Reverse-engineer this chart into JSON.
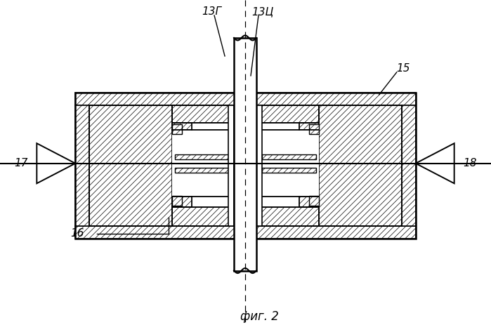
{
  "caption": "фиг. 2",
  "label_13G": "13Г",
  "label_13C": "13Ц",
  "label_15": "15",
  "label_16": "16",
  "label_17": "17",
  "label_18": "18",
  "bg_color": "#ffffff",
  "fig_width": 6.99,
  "fig_height": 4.63,
  "dpi": 100
}
